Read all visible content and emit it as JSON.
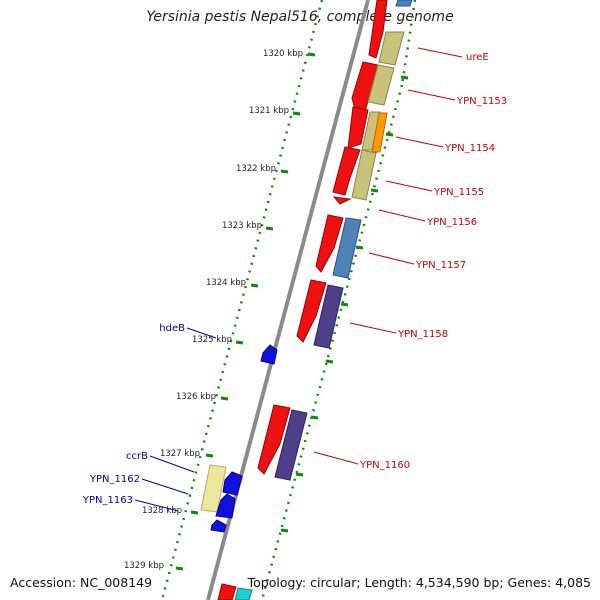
{
  "title": "Yersinia pestis Nepal516, complete genome",
  "accession": "Accession: NC_008149",
  "topology": "Topology: circular; Length: 4,534,590 bp; Genes: 4,085",
  "ruler": [
    "1320 kbp",
    "1321 kbp",
    "1322 kbp",
    "1323 kbp",
    "1324 kbp",
    "1325 kbp",
    "1326 kbp",
    "1327 kbp",
    "1328 kbp",
    "1329 kbp"
  ],
  "gene_labels_right": [
    "ureE",
    "YPN_1153",
    "YPN_1154",
    "YPN_1155",
    "YPN_1156",
    "YPN_1157",
    "YPN_1158",
    "YPN_1160"
  ],
  "gene_labels_left": [
    "hdeB",
    "ccrB",
    "YPN_1162",
    "YPN_1163"
  ],
  "colors": {
    "forward_label": "#cc0000",
    "reverse_label": "#0000aa",
    "tick_dots": "#118811",
    "backbone": "#888888",
    "cds_red": "#ee1111",
    "cds_khaki": "#c8c27a",
    "cds_blue_grey": "#4f82b5",
    "cds_purple": "#4d3f8a",
    "cds_orange": "#ff9900",
    "cds_blue": "#1111dd",
    "cds_pale_yellow": "#ece79a",
    "cds_cyan": "#22cccc"
  }
}
